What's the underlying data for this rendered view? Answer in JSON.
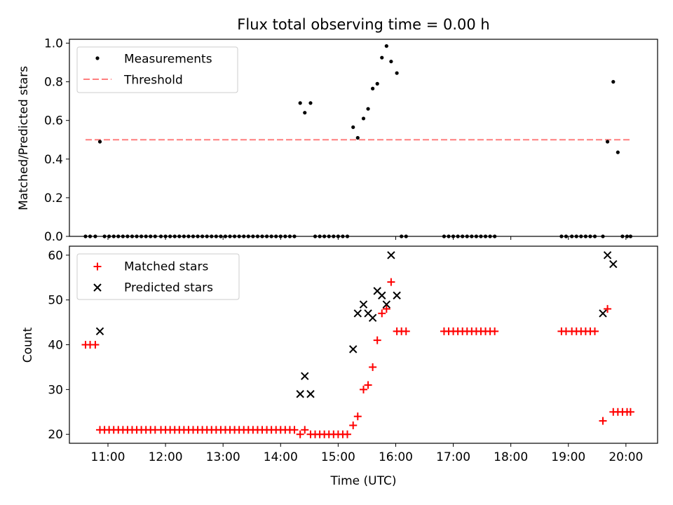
{
  "chart_data": [
    {
      "type": "scatter",
      "title": "Flux total observing time = 0.00 h",
      "xlabel": "",
      "ylabel": "Matched/Predicted stars",
      "ylim": [
        0,
        1.02
      ],
      "yticks": [
        "0.0",
        "0.2",
        "0.4",
        "0.6",
        "0.8",
        "1.0"
      ],
      "legend": {
        "placement": "top-left",
        "entries": [
          "Measurements",
          "Threshold"
        ]
      },
      "threshold": {
        "name": "Threshold",
        "value": 0.5,
        "x_range": [
          10.61,
          20.07
        ],
        "color": "#ff7f7f"
      },
      "series": [
        {
          "name": "Measurements",
          "color": "#000000",
          "x": [
            10.61,
            10.69,
            10.78,
            10.86,
            10.94,
            11.02,
            11.1,
            11.18,
            11.26,
            11.34,
            11.42,
            11.5,
            11.58,
            11.66,
            11.74,
            11.82,
            11.92,
            12.0,
            12.08,
            12.16,
            12.24,
            12.32,
            12.4,
            12.48,
            12.56,
            12.64,
            12.72,
            12.8,
            12.88,
            12.96,
            13.04,
            13.12,
            13.2,
            13.28,
            13.36,
            13.44,
            13.52,
            13.6,
            13.68,
            13.76,
            13.84,
            13.92,
            14.0,
            14.08,
            14.16,
            14.24,
            14.34,
            14.42,
            14.52,
            14.6,
            14.68,
            14.76,
            14.84,
            14.92,
            15.0,
            15.08,
            15.16,
            15.26,
            15.34,
            15.44,
            15.52,
            15.6,
            15.68,
            15.76,
            15.84,
            15.92,
            16.02,
            16.1,
            16.18,
            16.84,
            16.92,
            17.0,
            17.08,
            17.16,
            17.24,
            17.32,
            17.4,
            17.48,
            17.56,
            17.64,
            17.72,
            18.88,
            18.96,
            19.06,
            19.14,
            19.22,
            19.3,
            19.38,
            19.46,
            19.6,
            19.68,
            19.78,
            19.86,
            19.94,
            20.02,
            20.08
          ],
          "y": [
            0,
            0,
            0,
            0.49,
            0,
            0,
            0,
            0,
            0,
            0,
            0,
            0,
            0,
            0,
            0,
            0,
            0,
            0,
            0,
            0,
            0,
            0,
            0,
            0,
            0,
            0,
            0,
            0,
            0,
            0,
            0,
            0,
            0,
            0,
            0,
            0,
            0,
            0,
            0,
            0,
            0,
            0,
            0,
            0,
            0,
            0,
            0.69,
            0.64,
            0.69,
            0,
            0,
            0,
            0,
            0,
            0,
            0,
            0,
            0.565,
            0.51,
            0.61,
            0.66,
            0.765,
            0.79,
            0.925,
            0.985,
            0.905,
            0.845,
            0,
            0,
            0,
            0,
            0,
            0,
            0,
            0,
            0,
            0,
            0,
            0,
            0,
            0,
            0,
            0,
            0,
            0,
            0,
            0,
            0,
            0,
            0,
            0.49,
            0.8,
            0.435,
            0,
            0,
            0
          ]
        }
      ]
    },
    {
      "type": "scatter",
      "title": "",
      "xlabel": "Time (UTC)",
      "ylabel": "Count",
      "ylim": [
        18,
        62
      ],
      "yticks": [
        "20",
        "30",
        "40",
        "50",
        "60"
      ],
      "xlim": [
        10.33,
        20.55
      ],
      "xticks": [
        "11:00",
        "12:00",
        "13:00",
        "14:00",
        "15:00",
        "16:00",
        "17:00",
        "18:00",
        "19:00",
        "20:00"
      ],
      "legend": {
        "placement": "top-left",
        "entries": [
          "Matched stars",
          "Predicted stars"
        ]
      },
      "series": [
        {
          "name": "Matched stars",
          "marker": "+",
          "color": "#ff0000",
          "x": [
            10.61,
            10.69,
            10.78,
            10.86,
            10.94,
            11.02,
            11.1,
            11.18,
            11.26,
            11.34,
            11.42,
            11.5,
            11.58,
            11.66,
            11.74,
            11.82,
            11.92,
            12.0,
            12.08,
            12.16,
            12.24,
            12.32,
            12.4,
            12.48,
            12.56,
            12.64,
            12.72,
            12.8,
            12.88,
            12.96,
            13.04,
            13.12,
            13.2,
            13.28,
            13.36,
            13.44,
            13.52,
            13.6,
            13.68,
            13.76,
            13.84,
            13.92,
            14.0,
            14.08,
            14.16,
            14.24,
            14.34,
            14.42,
            14.52,
            14.6,
            14.68,
            14.76,
            14.84,
            14.92,
            15.0,
            15.08,
            15.16,
            15.26,
            15.34,
            15.44,
            15.52,
            15.6,
            15.68,
            15.76,
            15.84,
            15.92,
            16.02,
            16.1,
            16.18,
            16.84,
            16.92,
            17.0,
            17.08,
            17.16,
            17.24,
            17.32,
            17.4,
            17.48,
            17.56,
            17.64,
            17.72,
            18.88,
            18.96,
            19.06,
            19.14,
            19.22,
            19.3,
            19.38,
            19.46,
            19.6,
            19.68,
            19.78,
            19.86,
            19.94,
            20.02,
            20.08
          ],
          "y": [
            40,
            40,
            40,
            21,
            21,
            21,
            21,
            21,
            21,
            21,
            21,
            21,
            21,
            21,
            21,
            21,
            21,
            21,
            21,
            21,
            21,
            21,
            21,
            21,
            21,
            21,
            21,
            21,
            21,
            21,
            21,
            21,
            21,
            21,
            21,
            21,
            21,
            21,
            21,
            21,
            21,
            21,
            21,
            21,
            21,
            21,
            20,
            21,
            20,
            20,
            20,
            20,
            20,
            20,
            20,
            20,
            20,
            22,
            24,
            30,
            31,
            35,
            41,
            47,
            48,
            54,
            43,
            43,
            43,
            43,
            43,
            43,
            43,
            43,
            43,
            43,
            43,
            43,
            43,
            43,
            43,
            43,
            43,
            43,
            43,
            43,
            43,
            43,
            43,
            23,
            48,
            25,
            25,
            25,
            25,
            25
          ]
        },
        {
          "name": "Predicted stars",
          "marker": "x",
          "color": "#000000",
          "x": [
            10.86,
            14.34,
            14.42,
            14.52,
            15.26,
            15.34,
            15.44,
            15.52,
            15.6,
            15.68,
            15.76,
            15.84,
            15.92,
            16.02,
            19.6,
            19.68,
            19.78
          ],
          "y": [
            43,
            29,
            33,
            29,
            39,
            47,
            49,
            47,
            46,
            52,
            51,
            49,
            60,
            51,
            47,
            60,
            58
          ]
        }
      ]
    }
  ]
}
